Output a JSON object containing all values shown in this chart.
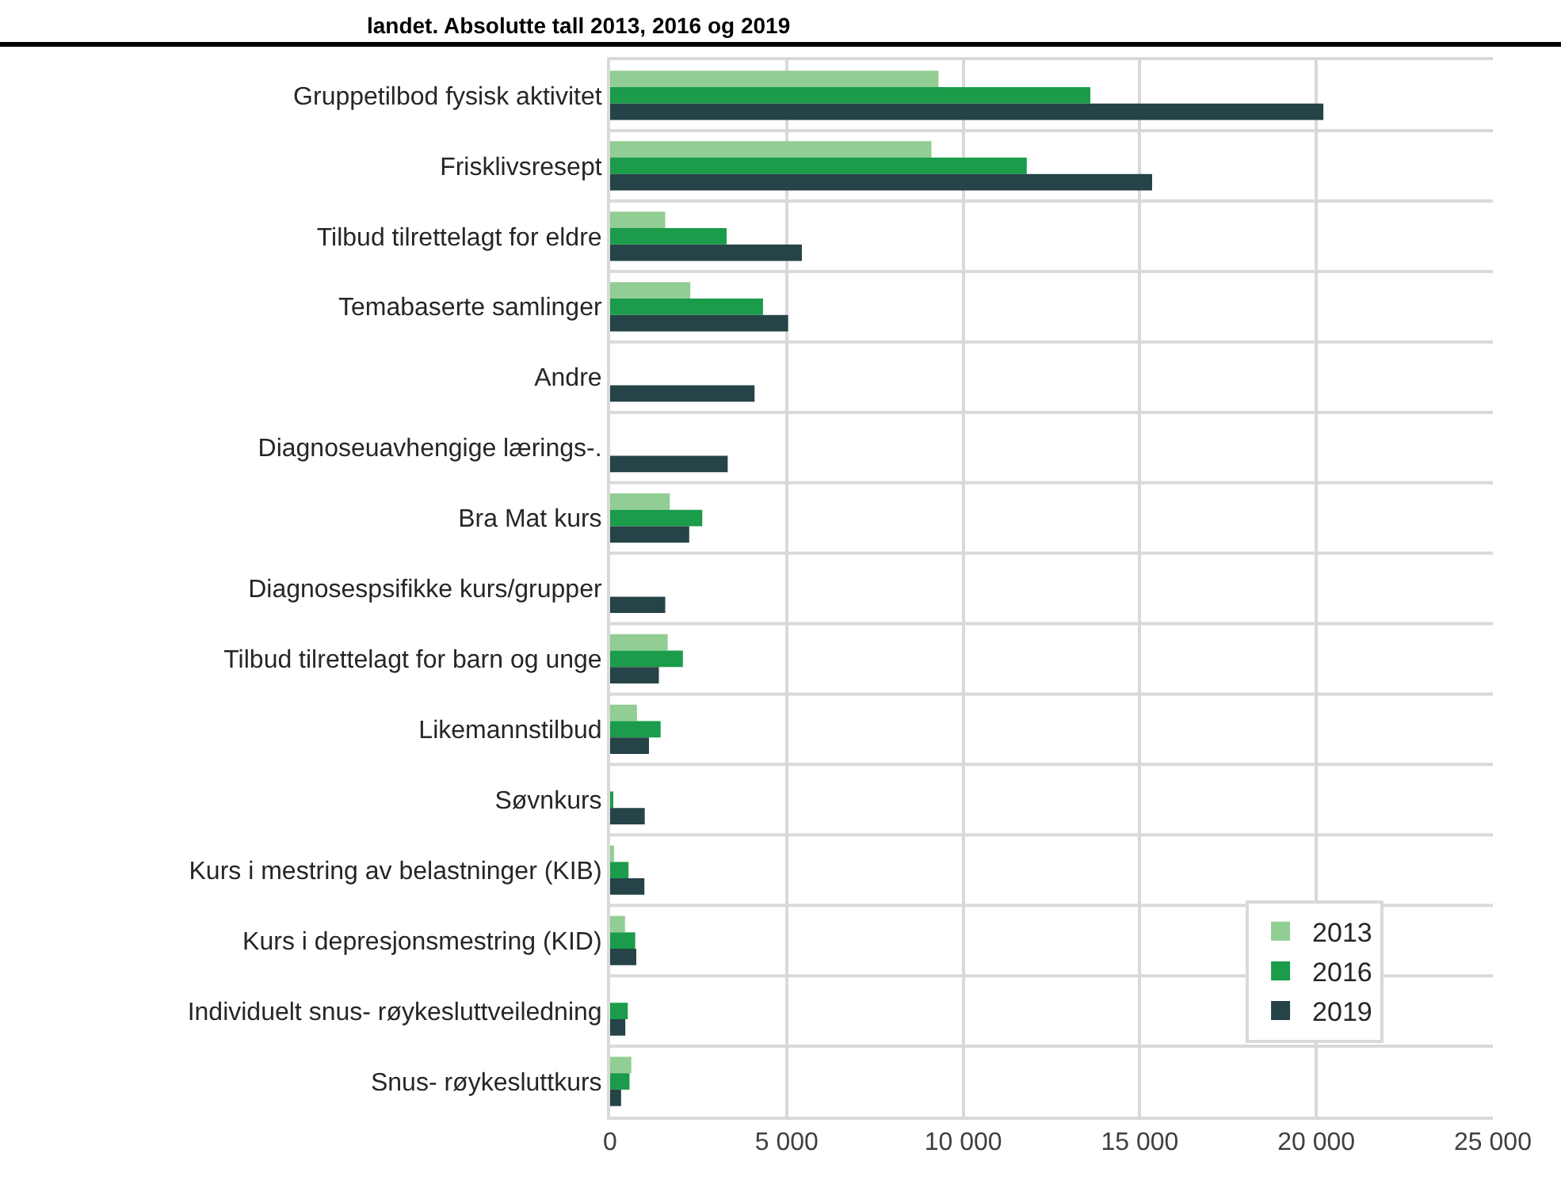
{
  "chart_data": {
    "type": "bar",
    "orientation": "horizontal",
    "title": "landet. Absolutte tall 2013, 2016 og 2019",
    "categories": [
      "Gruppetilbod fysisk aktivitet",
      "Frisklivsresept",
      "Tilbud tilrettelagt for eldre",
      "Temabaserte samlinger",
      "Andre",
      "Diagnoseuavhengige lærings-.",
      "Bra Mat kurs",
      "Diagnosespsifikke kurs/grupper",
      "Tilbud tilrettelagt for barn og unge",
      "Likemannstilbud",
      "Søvnkurs",
      "Kurs i mestring av belastninger (KIB)",
      "Kurs i depresjonsmestring (KID)",
      "Individuelt snus- røykesluttveiledning",
      "Snus- røykesluttkurs"
    ],
    "series": [
      {
        "name": "2013",
        "color": "#92cd93",
        "values": [
          9300,
          9100,
          1560,
          2270,
          null,
          null,
          1690,
          null,
          1630,
          760,
          null,
          110,
          420,
          null,
          600
        ]
      },
      {
        "name": "2016",
        "color": "#1a9c4a",
        "values": [
          13600,
          11800,
          3300,
          4330,
          null,
          null,
          2610,
          null,
          2060,
          1430,
          60,
          520,
          710,
          500,
          550
        ]
      },
      {
        "name": "2019",
        "color": "#264347",
        "values": [
          20200,
          15350,
          5430,
          5040,
          4090,
          3330,
          2240,
          1560,
          1380,
          1100,
          980,
          970,
          740,
          430,
          310
        ]
      }
    ],
    "xlim": [
      0,
      25000
    ],
    "xticks": [
      {
        "value": 0,
        "label": "0"
      },
      {
        "value": 5000,
        "label": "5 000"
      },
      {
        "value": 10000,
        "label": "10 000"
      },
      {
        "value": 15000,
        "label": "15 000"
      },
      {
        "value": 20000,
        "label": "20 000"
      },
      {
        "value": 25000,
        "label": "25 000"
      }
    ],
    "grid": true,
    "legend": "bottom right"
  }
}
